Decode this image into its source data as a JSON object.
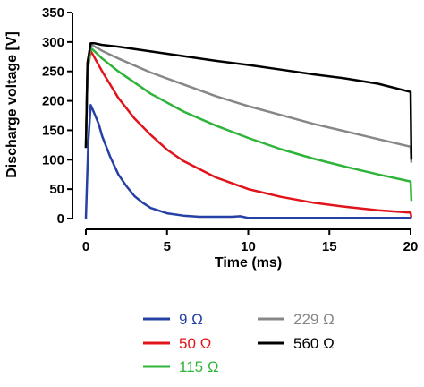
{
  "chart_data": {
    "type": "line",
    "title": "",
    "xlabel": "Time (ms)",
    "ylabel": "Discharge voltage [V]",
    "xlim": [
      0,
      20
    ],
    "ylim": [
      0,
      350
    ],
    "xticks": [
      0,
      5,
      10,
      15,
      20
    ],
    "yticks": [
      0,
      50,
      100,
      150,
      200,
      250,
      300,
      350
    ],
    "grid": false,
    "legend_position": "bottom",
    "series": [
      {
        "name": "9 Ω",
        "color": "#2541a5",
        "x": [
          0,
          0.15,
          0.3,
          0.5,
          0.8,
          1.0,
          1.5,
          2.0,
          2.5,
          3.0,
          3.5,
          4.0,
          5.0,
          6.0,
          7.0,
          8.0,
          9.0,
          9.5,
          10.0,
          12.0,
          15.0,
          18.0,
          20.0,
          20.05
        ],
        "values": [
          0,
          130,
          193,
          180,
          160,
          140,
          105,
          75,
          55,
          38,
          27,
          18,
          9,
          5,
          3,
          3,
          3,
          4,
          1,
          1,
          1,
          1,
          1,
          0
        ]
      },
      {
        "name": "50 Ω",
        "color": "#e0141a",
        "x": [
          0,
          0.1,
          0.3,
          0.5,
          1.0,
          2.0,
          3.0,
          4.0,
          5.0,
          6.0,
          8.0,
          10.0,
          12.0,
          14.0,
          16.0,
          18.0,
          20.0,
          20.05
        ],
        "values": [
          120,
          250,
          285,
          275,
          250,
          205,
          170,
          142,
          117,
          98,
          70,
          50,
          37,
          27,
          20,
          14,
          10,
          2
        ]
      },
      {
        "name": "115 Ω",
        "color": "#2fb43a",
        "x": [
          0,
          0.1,
          0.3,
          0.5,
          1.0,
          2.0,
          4.0,
          6.0,
          8.0,
          10.0,
          12.0,
          14.0,
          16.0,
          18.0,
          20.0,
          20.05
        ],
        "values": [
          120,
          250,
          290,
          285,
          272,
          250,
          212,
          182,
          158,
          137,
          118,
          102,
          88,
          75,
          63,
          30
        ]
      },
      {
        "name": "229 Ω",
        "color": "#878787",
        "x": [
          0,
          0.1,
          0.3,
          0.5,
          1.0,
          2.0,
          4.0,
          6.0,
          8.0,
          10.0,
          12.0,
          14.0,
          16.0,
          18.0,
          20.0,
          20.05
        ],
        "values": [
          120,
          260,
          295,
          293,
          285,
          272,
          248,
          228,
          208,
          191,
          176,
          161,
          148,
          135,
          122,
          95
        ]
      },
      {
        "name": "560 Ω",
        "color": "#000000",
        "x": [
          0,
          0.1,
          0.3,
          0.5,
          1.0,
          2.0,
          4.0,
          6.0,
          8.0,
          10.0,
          12.0,
          14.0,
          16.0,
          18.0,
          20.0,
          20.05
        ],
        "values": [
          120,
          265,
          298,
          298,
          295,
          292,
          284,
          276,
          268,
          261,
          253,
          245,
          238,
          229,
          215,
          100
        ]
      }
    ]
  }
}
